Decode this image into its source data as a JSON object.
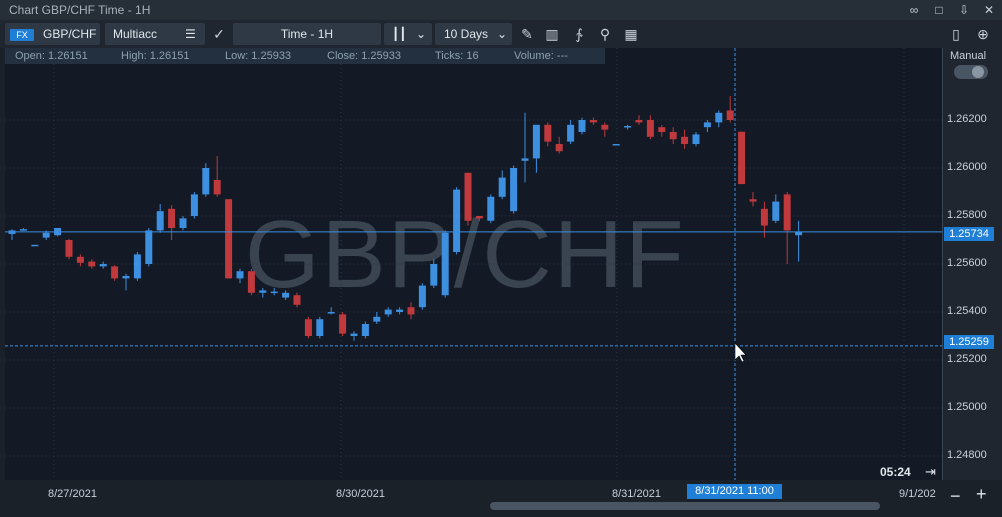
{
  "window": {
    "title": "Chart GBP/CHF Time - 1H"
  },
  "toolbar": {
    "fx_badge": "FX",
    "symbol": "GBP/CHF",
    "account": "Multiacc",
    "timeframe": "Time - 1H",
    "range": "10 Days"
  },
  "ohlc": {
    "open": "Open:   1.26151",
    "high": "High:   1.26151",
    "low": "Low:   1.25933",
    "close": "Close:   1.25933",
    "ticks": "Ticks:   16",
    "volume": "Volume:   ---"
  },
  "watermark": "GBP/CHF",
  "manual_label": "Manual",
  "timer": "05:24",
  "price_labels": {
    "current": "1.25734",
    "cursor": "1.25259"
  },
  "cursor_time_label": "8/31/2021 11:00",
  "colors": {
    "up": "#3d8fe0",
    "down": "#c0393d",
    "accent": "#1f7fd6"
  },
  "chart_data": {
    "type": "candlestick",
    "ylim": [
      1.247,
      1.265
    ],
    "yticks": [
      "1.26200",
      "1.26000",
      "1.25800",
      "1.25600",
      "1.25400",
      "1.25200",
      "1.25000",
      "1.24800"
    ],
    "ytick_values": [
      1.262,
      1.26,
      1.258,
      1.256,
      1.254,
      1.252,
      1.25,
      1.248
    ],
    "xticks": [
      "8/27/2021",
      "8/30/2021",
      "8/31/2021",
      "9/1/202"
    ],
    "candles": [
      {
        "o": 1.25725,
        "h": 1.25745,
        "l": 1.257,
        "c": 1.2574
      },
      {
        "o": 1.25745,
        "h": 1.2575,
        "l": 1.2574,
        "c": 1.25745
      },
      {
        "o": 1.2568,
        "h": 1.2568,
        "l": 1.2568,
        "c": 1.2568
      },
      {
        "o": 1.2571,
        "h": 1.2574,
        "l": 1.257,
        "c": 1.2573
      },
      {
        "o": 1.2572,
        "h": 1.2575,
        "l": 1.25715,
        "c": 1.2575
      },
      {
        "o": 1.257,
        "h": 1.25705,
        "l": 1.2562,
        "c": 1.2563
      },
      {
        "o": 1.2563,
        "h": 1.2564,
        "l": 1.2559,
        "c": 1.25605
      },
      {
        "o": 1.2561,
        "h": 1.2562,
        "l": 1.2558,
        "c": 1.2559
      },
      {
        "o": 1.2559,
        "h": 1.2561,
        "l": 1.2558,
        "c": 1.256
      },
      {
        "o": 1.2559,
        "h": 1.25595,
        "l": 1.2553,
        "c": 1.2554
      },
      {
        "o": 1.2554,
        "h": 1.2556,
        "l": 1.2549,
        "c": 1.2555
      },
      {
        "o": 1.2554,
        "h": 1.2565,
        "l": 1.2553,
        "c": 1.2564
      },
      {
        "o": 1.256,
        "h": 1.2575,
        "l": 1.2559,
        "c": 1.2574
      },
      {
        "o": 1.2574,
        "h": 1.2585,
        "l": 1.2573,
        "c": 1.2582
      },
      {
        "o": 1.2583,
        "h": 1.25845,
        "l": 1.257,
        "c": 1.2575
      },
      {
        "o": 1.2575,
        "h": 1.258,
        "l": 1.2574,
        "c": 1.2579
      },
      {
        "o": 1.258,
        "h": 1.259,
        "l": 1.2579,
        "c": 1.2589
      },
      {
        "o": 1.2589,
        "h": 1.2602,
        "l": 1.2588,
        "c": 1.26
      },
      {
        "o": 1.2595,
        "h": 1.2605,
        "l": 1.2588,
        "c": 1.2589
      },
      {
        "o": 1.2587,
        "h": 1.2587,
        "l": 1.2554,
        "c": 1.2554
      },
      {
        "o": 1.2554,
        "h": 1.2558,
        "l": 1.2552,
        "c": 1.2557
      },
      {
        "o": 1.2557,
        "h": 1.2558,
        "l": 1.2547,
        "c": 1.2548
      },
      {
        "o": 1.2548,
        "h": 1.255,
        "l": 1.2546,
        "c": 1.2549
      },
      {
        "o": 1.2548,
        "h": 1.255,
        "l": 1.2547,
        "c": 1.25485
      },
      {
        "o": 1.2546,
        "h": 1.2549,
        "l": 1.2545,
        "c": 1.2548
      },
      {
        "o": 1.2547,
        "h": 1.2548,
        "l": 1.2542,
        "c": 1.2543
      },
      {
        "o": 1.2537,
        "h": 1.2538,
        "l": 1.2529,
        "c": 1.253
      },
      {
        "o": 1.253,
        "h": 1.2538,
        "l": 1.2529,
        "c": 1.2537
      },
      {
        "o": 1.254,
        "h": 1.2542,
        "l": 1.2539,
        "c": 1.254
      },
      {
        "o": 1.2539,
        "h": 1.254,
        "l": 1.253,
        "c": 1.2531
      },
      {
        "o": 1.253,
        "h": 1.2532,
        "l": 1.2528,
        "c": 1.2531
      },
      {
        "o": 1.253,
        "h": 1.2536,
        "l": 1.2529,
        "c": 1.2535
      },
      {
        "o": 1.2536,
        "h": 1.254,
        "l": 1.2535,
        "c": 1.2538
      },
      {
        "o": 1.2539,
        "h": 1.2542,
        "l": 1.2538,
        "c": 1.2541
      },
      {
        "o": 1.254,
        "h": 1.2542,
        "l": 1.2539,
        "c": 1.2541
      },
      {
        "o": 1.2542,
        "h": 1.2544,
        "l": 1.2537,
        "c": 1.2539
      },
      {
        "o": 1.2542,
        "h": 1.2552,
        "l": 1.2541,
        "c": 1.2551
      },
      {
        "o": 1.2551,
        "h": 1.2562,
        "l": 1.255,
        "c": 1.256
      },
      {
        "o": 1.2547,
        "h": 1.2574,
        "l": 1.2546,
        "c": 1.2573
      },
      {
        "o": 1.2565,
        "h": 1.2592,
        "l": 1.2564,
        "c": 1.2591
      },
      {
        "o": 1.2598,
        "h": 1.2598,
        "l": 1.2576,
        "c": 1.2578
      },
      {
        "o": 1.258,
        "h": 1.258,
        "l": 1.2578,
        "c": 1.2579
      },
      {
        "o": 1.2578,
        "h": 1.2589,
        "l": 1.2577,
        "c": 1.2588
      },
      {
        "o": 1.2588,
        "h": 1.2599,
        "l": 1.2587,
        "c": 1.2596
      },
      {
        "o": 1.2582,
        "h": 1.2601,
        "l": 1.2581,
        "c": 1.26
      },
      {
        "o": 1.2603,
        "h": 1.2623,
        "l": 1.2594,
        "c": 1.2604
      },
      {
        "o": 1.2604,
        "h": 1.2618,
        "l": 1.2598,
        "c": 1.2618
      },
      {
        "o": 1.2618,
        "h": 1.2619,
        "l": 1.2609,
        "c": 1.2611
      },
      {
        "o": 1.261,
        "h": 1.2613,
        "l": 1.2606,
        "c": 1.2607
      },
      {
        "o": 1.2611,
        "h": 1.262,
        "l": 1.261,
        "c": 1.2618
      },
      {
        "o": 1.2615,
        "h": 1.2621,
        "l": 1.2614,
        "c": 1.262
      },
      {
        "o": 1.262,
        "h": 1.2621,
        "l": 1.2618,
        "c": 1.2619
      },
      {
        "o": 1.2618,
        "h": 1.2619,
        "l": 1.2613,
        "c": 1.2616
      },
      {
        "o": 1.261,
        "h": 1.261,
        "l": 1.261,
        "c": 1.261
      },
      {
        "o": 1.2617,
        "h": 1.2618,
        "l": 1.2616,
        "c": 1.26175
      },
      {
        "o": 1.262,
        "h": 1.2622,
        "l": 1.2618,
        "c": 1.2619
      },
      {
        "o": 1.262,
        "h": 1.2622,
        "l": 1.2612,
        "c": 1.2613
      },
      {
        "o": 1.2617,
        "h": 1.2618,
        "l": 1.2613,
        "c": 1.2615
      },
      {
        "o": 1.2615,
        "h": 1.2617,
        "l": 1.261,
        "c": 1.2612
      },
      {
        "o": 1.2613,
        "h": 1.2616,
        "l": 1.2608,
        "c": 1.261
      },
      {
        "o": 1.261,
        "h": 1.2615,
        "l": 1.2609,
        "c": 1.2614
      },
      {
        "o": 1.2617,
        "h": 1.262,
        "l": 1.2615,
        "c": 1.2619
      },
      {
        "o": 1.2619,
        "h": 1.2624,
        "l": 1.2617,
        "c": 1.2623
      },
      {
        "o": 1.2624,
        "h": 1.263,
        "l": 1.2619,
        "c": 1.262
      },
      {
        "o": 1.26151,
        "h": 1.26151,
        "l": 1.25933,
        "c": 1.25933
      },
      {
        "o": 1.2587,
        "h": 1.259,
        "l": 1.2584,
        "c": 1.2586
      },
      {
        "o": 1.2583,
        "h": 1.2586,
        "l": 1.2571,
        "c": 1.2576
      },
      {
        "o": 1.2578,
        "h": 1.2589,
        "l": 1.2577,
        "c": 1.2586
      },
      {
        "o": 1.2589,
        "h": 1.259,
        "l": 1.256,
        "c": 1.2574
      },
      {
        "o": 1.2572,
        "h": 1.2578,
        "l": 1.2561,
        "c": 1.25734
      }
    ]
  }
}
